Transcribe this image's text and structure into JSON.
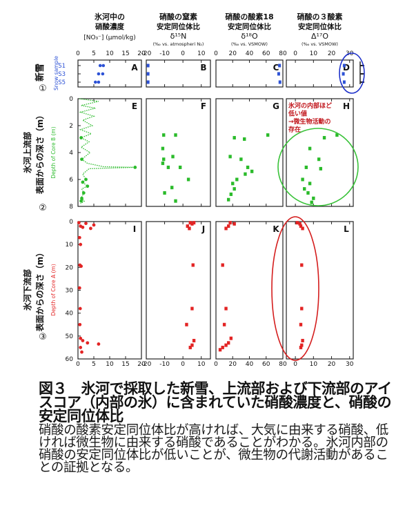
{
  "figure_caption": {
    "title": "図３　氷河で採取した新雪、上流部および下流部のアイスコア（内部の氷）に含まれていた硝酸濃度と、硝酸の安定同位体比",
    "body": "硝酸の酸素安定同位体比が高ければ、大気に由来する硝酸、低ければ微生物に由来する硝酸であることがわかる。氷河内部の硝酸の安定同位体比が低いことが、微生物の代謝活動があることの証拠となる。"
  },
  "row_labels": {
    "row1": {
      "num": "①",
      "text": "新雪",
      "axis": "Snow sample"
    },
    "row2": {
      "num": "②",
      "line1": "氷河上流部",
      "line2": "表面からの深さ（m）",
      "axis": "Depth of Core B (m)"
    },
    "row3": {
      "num": "③",
      "line1": "氷河下流部",
      "line2": "表面からの深さ（m）",
      "axis": "Depth of Core A (m)"
    }
  },
  "annotation": {
    "line1": "氷河の内部ほど",
    "line2": "低い値",
    "line3": "→微生物活動の",
    "line4": "存在"
  },
  "colors": {
    "snow": "#2d52d6",
    "coreB": "#2bbb2b",
    "coreA": "#e32424",
    "ellipse_blue": "#1c2fc9",
    "ellipse_green": "#39c239",
    "ellipse_red": "#d41c1c",
    "annotation": "#c0141a"
  },
  "chart_data": [
    {
      "type": "scatter",
      "column": 1,
      "title_line1": "氷河中の",
      "title_line2": "硝酸濃度",
      "unit": "[NO₃⁻] (μmol/kg)",
      "xlim": [
        0,
        20
      ],
      "xticks": [
        0,
        5,
        10,
        15,
        20
      ]
    },
    {
      "type": "scatter",
      "column": 2,
      "title_line1": "硝酸の窒素",
      "title_line2": "安定同位体比",
      "title_line3": "δ¹⁵N",
      "unit": "(‰ vs. atmospheri N₂)",
      "xlim": [
        -20,
        15
      ],
      "xticks": [
        -20,
        -10,
        0,
        10
      ]
    },
    {
      "type": "scatter",
      "column": 3,
      "title_line1": "硝酸の酸素18",
      "title_line2": "安定同位体比",
      "title_line3": "δ¹⁸O",
      "unit": "(‰ vs. VSMOW)",
      "xlim": [
        0,
        80
      ],
      "xticks": [
        0,
        20,
        40,
        60,
        80
      ]
    },
    {
      "type": "scatter",
      "column": 4,
      "title_line1": "硝酸の３酸素",
      "title_line2": "安定同位体比",
      "title_line3": "Δ¹⁷O",
      "unit": "(‰ vs. VSMOW)",
      "xlim": [
        -5,
        32
      ],
      "xticks": [
        0,
        10,
        20,
        30
      ]
    },
    {
      "type": "scatter",
      "row": "snow",
      "ylabel": "Snow sample",
      "categories": [
        "S1",
        "S3",
        "S5"
      ],
      "panels": {
        "A": {
          "points": [
            {
              "y": "S1",
              "x": 7.0
            },
            {
              "y": "S1",
              "x": 8.0
            },
            {
              "y": "S3",
              "x": 6.5
            },
            {
              "y": "S3",
              "x": 7.8
            },
            {
              "y": "S5",
              "x": 5.5
            },
            {
              "y": "S5",
              "x": 6.5
            }
          ]
        },
        "B": {
          "points": [
            {
              "y": "S1",
              "x": -19.0
            },
            {
              "y": "S3",
              "x": -19.0
            },
            {
              "y": "S5",
              "x": -19.0
            }
          ]
        },
        "C": {
          "points": [
            {
              "y": "S1",
              "x": 76.0
            },
            {
              "y": "S3",
              "x": 75.0
            },
            {
              "y": "S5",
              "x": 76.5
            }
          ]
        },
        "D": {
          "points": [
            {
              "y": "S1",
              "x": 27.0
            },
            {
              "y": "S3",
              "x": 26.5
            },
            {
              "y": "S5",
              "x": 27.0
            }
          ]
        }
      }
    },
    {
      "type": "scatter",
      "row": "coreB",
      "ylabel": "Depth of Core B (m)",
      "ylim": [
        0,
        8
      ],
      "yticks": [
        0,
        2,
        4,
        6,
        8
      ],
      "panels": {
        "E": {
          "points": [
            [
              1.0,
              2.9
            ],
            [
              1.2,
              4.5
            ],
            [
              18.0,
              5.1
            ],
            [
              2.5,
              6.0
            ],
            [
              1.5,
              6.2
            ],
            [
              3.0,
              6.5
            ],
            [
              1.8,
              7.0
            ],
            [
              1.2,
              7.4
            ],
            [
              1.0,
              7.6
            ]
          ],
          "profile": [
            [
              0.5,
              0
            ],
            [
              6.5,
              0.2
            ],
            [
              1.0,
              0.5
            ],
            [
              5.5,
              0.7
            ],
            [
              0.8,
              1.0
            ],
            [
              5.0,
              1.3
            ],
            [
              1.5,
              1.6
            ],
            [
              4.5,
              2.0
            ],
            [
              0.8,
              2.3
            ],
            [
              4.2,
              2.6
            ],
            [
              1.0,
              2.9
            ],
            [
              3.5,
              3.2
            ],
            [
              1.0,
              3.6
            ],
            [
              3.8,
              4.0
            ],
            [
              1.2,
              4.5
            ],
            [
              3.0,
              4.8
            ],
            [
              8.0,
              5.05
            ],
            [
              18.0,
              5.1
            ],
            [
              3.5,
              5.2
            ],
            [
              1.5,
              5.6
            ],
            [
              2.5,
              6.0
            ],
            [
              1.5,
              6.2
            ],
            [
              3.0,
              6.5
            ],
            [
              1.2,
              6.7
            ],
            [
              1.8,
              7.0
            ],
            [
              1.0,
              7.4
            ],
            [
              2.0,
              7.6
            ],
            [
              0.8,
              7.8
            ]
          ]
        },
        "F": {
          "points": [
            [
              -10.5,
              2.7
            ],
            [
              -4.0,
              2.7
            ],
            [
              -11.0,
              3.7
            ],
            [
              -5.5,
              4.3
            ],
            [
              -10.5,
              4.5
            ],
            [
              -11.0,
              4.8
            ],
            [
              -8.0,
              5.1
            ],
            [
              -1.5,
              5.1
            ],
            [
              3.0,
              6.0
            ],
            [
              -6.0,
              6.6
            ],
            [
              -10.0,
              7.0
            ],
            [
              -4.0,
              7.6
            ]
          ]
        },
        "G": {
          "points": [
            [
              62.0,
              2.7
            ],
            [
              22.0,
              2.9
            ],
            [
              34.0,
              3.0
            ],
            [
              17.0,
              4.3
            ],
            [
              30.0,
              4.5
            ],
            [
              38.0,
              5.1
            ],
            [
              43.0,
              5.4
            ],
            [
              35.0,
              5.6
            ],
            [
              25.0,
              6.0
            ],
            [
              20.0,
              6.3
            ],
            [
              22.0,
              6.7
            ],
            [
              18.0,
              7.1
            ],
            [
              15.0,
              7.5
            ]
          ]
        },
        "H": {
          "points": [
            [
              23.0,
              2.7
            ],
            [
              16.0,
              2.9
            ],
            [
              8.0,
              3.7
            ],
            [
              13.0,
              4.5
            ],
            [
              6.0,
              5.1
            ],
            [
              14.0,
              5.2
            ],
            [
              4.0,
              6.0
            ],
            [
              8.0,
              6.3
            ],
            [
              5.0,
              6.7
            ],
            [
              7.0,
              7.0
            ],
            [
              10.0,
              7.4
            ],
            [
              9.0,
              7.7
            ]
          ]
        }
      }
    },
    {
      "type": "scatter",
      "row": "coreA",
      "ylabel": "Depth of Core A (m)",
      "ylim": [
        0,
        60
      ],
      "yticks": [
        0,
        10,
        20,
        30,
        40,
        50,
        60
      ],
      "panels": {
        "I": {
          "points": [
            [
              0.3,
              0.5
            ],
            [
              2.5,
              0.8
            ],
            [
              5.0,
              1.5
            ],
            [
              0.8,
              2.0
            ],
            [
              1.5,
              2.5
            ],
            [
              4.0,
              3.0
            ],
            [
              0.5,
              7.0
            ],
            [
              0.8,
              10.0
            ],
            [
              0.6,
              19.0
            ],
            [
              1.0,
              19.5
            ],
            [
              0.5,
              29.0
            ],
            [
              0.7,
              38.0
            ],
            [
              0.6,
              45.0
            ],
            [
              0.8,
              51.0
            ],
            [
              1.5,
              52.0
            ],
            [
              3.0,
              53.0
            ],
            [
              6.5,
              53.5
            ],
            [
              0.8,
              55.0
            ],
            [
              1.2,
              57.0
            ]
          ]
        },
        "J": {
          "points": [
            [
              4.0,
              0.5
            ],
            [
              6.0,
              0.5
            ],
            [
              5.0,
              1.0
            ],
            [
              2.5,
              2.0
            ],
            [
              3.5,
              3.0
            ],
            [
              5.5,
              19.0
            ],
            [
              5.0,
              38.0
            ],
            [
              2.0,
              45.0
            ],
            [
              6.0,
              52.0
            ],
            [
              5.0,
              54.0
            ],
            [
              4.0,
              55.0
            ]
          ]
        },
        "K": {
          "points": [
            [
              17.0,
              0.5
            ],
            [
              22.0,
              1.0
            ],
            [
              15.0,
              2.0
            ],
            [
              12.0,
              3.0
            ],
            [
              8.0,
              19.0
            ],
            [
              12.0,
              38.0
            ],
            [
              10.0,
              45.0
            ],
            [
              18.0,
              51.0
            ],
            [
              15.0,
              53.0
            ],
            [
              12.0,
              54.0
            ],
            [
              8.0,
              55.0
            ],
            [
              5.0,
              56.0
            ]
          ]
        },
        "L": {
          "points": [
            [
              1.0,
              0.5
            ],
            [
              2.5,
              1.0
            ],
            [
              3.0,
              2.0
            ],
            [
              4.0,
              3.0
            ],
            [
              3.5,
              19.0
            ],
            [
              3.5,
              38.0
            ],
            [
              3.0,
              45.0
            ],
            [
              4.0,
              52.0
            ],
            [
              3.5,
              54.0
            ],
            [
              3.0,
              55.0
            ]
          ]
        }
      }
    }
  ]
}
